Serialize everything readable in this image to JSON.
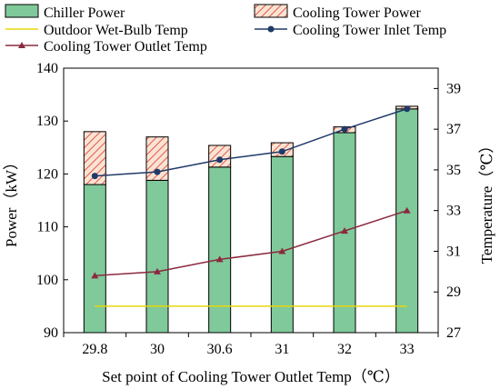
{
  "chart_data": {
    "type": "bar",
    "x_categories": [
      "29.8",
      "30",
      "30.6",
      "31",
      "32",
      "33"
    ],
    "xlabel": "Set point of Cooling Tower Outlet Temp（℃）",
    "ylabel_left": "Power（kW）",
    "ylabel_right": "Temperature（℃）",
    "ylim_left": [
      90,
      140
    ],
    "yticks_left": [
      "90",
      "100",
      "110",
      "120",
      "130",
      "140"
    ],
    "ylim_right": [
      27,
      40
    ],
    "yticks_right": [
      "27",
      "29",
      "31",
      "33",
      "35",
      "37",
      "39"
    ],
    "grid": false,
    "legend_position": "top",
    "series": [
      {
        "name": "Chiller Power",
        "type": "stacked-bar",
        "axis": "left",
        "color": "#7fc99a",
        "values": [
          118,
          118.8,
          121.3,
          123.3,
          127.8,
          132.3
        ]
      },
      {
        "name": "Cooling Tower Power",
        "type": "stacked-bar",
        "axis": "left",
        "color": "#f4b183",
        "hatch": "#e05a4a",
        "values": [
          10,
          8.2,
          4.1,
          2.6,
          1.1,
          0.5
        ]
      },
      {
        "name": "Outdoor Wet-Bulb Temp",
        "type": "line",
        "axis": "right",
        "color": "#e6d80a",
        "values": [
          28.3,
          28.3,
          28.3,
          28.3,
          28.3,
          28.3
        ]
      },
      {
        "name": "Cooling Tower Inlet Temp",
        "type": "line",
        "axis": "right",
        "color": "#1f3a68",
        "marker": "circle",
        "values": [
          34.7,
          34.9,
          35.5,
          35.9,
          37.0,
          38.0
        ]
      },
      {
        "name": "Cooling Tower Outlet Temp",
        "type": "line",
        "axis": "right",
        "color": "#8b2a3e",
        "marker": "triangle",
        "values": [
          29.8,
          30.0,
          30.6,
          31.0,
          32.0,
          33.0
        ]
      }
    ]
  }
}
